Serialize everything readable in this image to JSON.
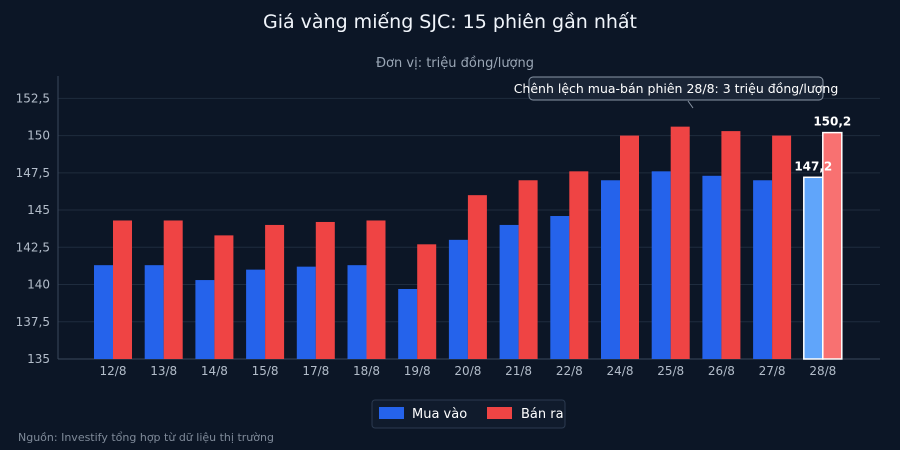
{
  "chart_data": {
    "type": "bar",
    "title": "Giá vàng miếng SJC: 15 phiên gần nhất",
    "subtitle": "Đơn vị: triệu đồng/lượng",
    "categories": [
      "12/8",
      "13/8",
      "14/8",
      "15/8",
      "17/8",
      "18/8",
      "19/8",
      "20/8",
      "21/8",
      "22/8",
      "24/8",
      "25/8",
      "26/8",
      "27/8",
      "28/8"
    ],
    "series": [
      {
        "name": "Mua vào",
        "color": "#2563eb",
        "highlight_color": "#60a5fa",
        "values": [
          141.3,
          141.3,
          140.3,
          141.0,
          141.2,
          141.3,
          139.7,
          143.0,
          144.0,
          144.6,
          147.0,
          147.6,
          147.3,
          147.0,
          147.2
        ]
      },
      {
        "name": "Bán ra",
        "color": "#ef4444",
        "highlight_color": "#f87171",
        "values": [
          144.3,
          144.3,
          143.3,
          144.0,
          144.2,
          144.3,
          142.7,
          146.0,
          147.0,
          147.6,
          150.0,
          150.6,
          150.3,
          150.0,
          150.2
        ]
      }
    ],
    "highlight_index": 14,
    "data_labels": [
      "147,2",
      "150,2"
    ],
    "y_ticks": [
      {
        "value": 135,
        "label": "135"
      },
      {
        "value": 137.5,
        "label": "137,5"
      },
      {
        "value": 140,
        "label": "140"
      },
      {
        "value": 142.5,
        "label": "142,5"
      },
      {
        "value": 145,
        "label": "145"
      },
      {
        "value": 147.5,
        "label": "147,5"
      },
      {
        "value": 150,
        "label": "150"
      },
      {
        "value": 152.5,
        "label": "152,5"
      }
    ],
    "ylim": [
      135,
      154
    ],
    "grid": true,
    "annotation": "Chênh lệch mua-bán phiên 28/8: 3 triệu đồng/lượng",
    "legend_position": "bottom-center",
    "source": "Nguồn: Investify tổng hợp từ dữ liệu thị trường"
  }
}
